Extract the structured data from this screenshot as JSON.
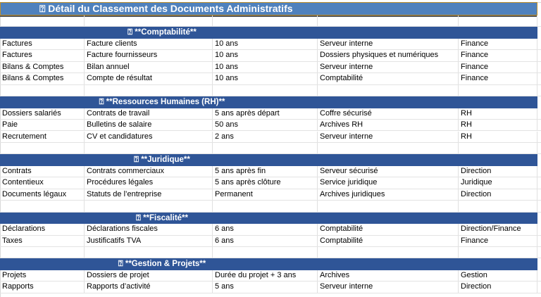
{
  "title": "⍰ Détail du Classement des Documents Administratifs",
  "sections": [
    {
      "label": "⍰ **Comptabilité**",
      "rows": [
        [
          "Factures",
          "Facture clients",
          "10 ans",
          "Serveur interne",
          "Finance"
        ],
        [
          "Factures",
          "Facture fournisseurs",
          "10 ans",
          "Dossiers physiques et numériques",
          "Finance"
        ],
        [
          "Bilans & Comptes",
          "Bilan annuel",
          "10 ans",
          "Serveur interne",
          "Finance"
        ],
        [
          "Bilans & Comptes",
          "Compte de résultat",
          "10 ans",
          "Comptabilité",
          "Finance"
        ]
      ]
    },
    {
      "label": "⍰ **Ressources Humaines (RH)**",
      "rows": [
        [
          "Dossiers salariés",
          "Contrats de travail",
          "5 ans après départ",
          "Coffre sécurisé",
          "RH"
        ],
        [
          "Paie",
          "Bulletins de salaire",
          "50 ans",
          "Archives RH",
          "RH"
        ],
        [
          "Recrutement",
          "CV et candidatures",
          "2 ans",
          "Serveur interne",
          "RH"
        ]
      ]
    },
    {
      "label": "⍰ **Juridique**",
      "rows": [
        [
          "Contrats",
          "Contrats commerciaux",
          "5 ans après fin",
          "Serveur sécurisé",
          "Direction"
        ],
        [
          "Contentieux",
          "Procédures légales",
          "5 ans après clôture",
          "Service juridique",
          "Juridique"
        ],
        [
          "Documents légaux",
          "Statuts de l’entreprise",
          "Permanent",
          "Archives juridiques",
          "Direction"
        ]
      ]
    },
    {
      "label": "⍰ **Fiscalité**",
      "rows": [
        [
          "Déclarations",
          "Déclarations fiscales",
          "6 ans",
          "Comptabilité",
          "Direction/Finance"
        ],
        [
          "Taxes",
          "Justificatifs TVA",
          "6 ans",
          "Comptabilité",
          "Finance"
        ]
      ]
    },
    {
      "label": "⍰ **Gestion & Projets**",
      "rows": [
        [
          "Projets",
          "Dossiers de projet",
          "Durée du projet + 3 ans",
          "Archives",
          "Gestion"
        ],
        [
          "Rapports",
          "Rapports d’activité",
          "5 ans",
          "Serveur interne",
          "Direction"
        ]
      ]
    }
  ],
  "colors": {
    "title_bg": "#4f81bd",
    "section_bg": "#2f5597",
    "selection_border": "#c0902a"
  }
}
